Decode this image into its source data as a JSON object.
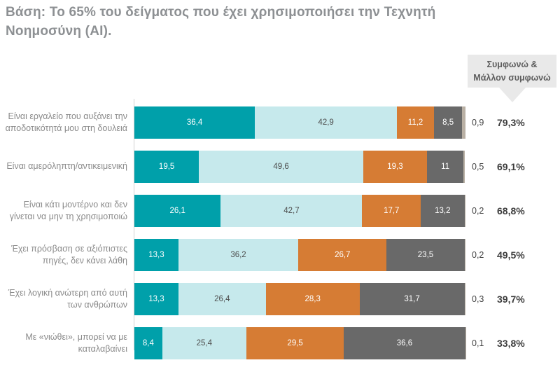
{
  "title": "Βάση: Το 65% του δείγματος που έχει χρησιμοποιήσει την Τεχνητή Νοημοσύνη (AI).",
  "badge": {
    "line1": "Συμφωνώ &",
    "line2": "Μάλλον συμφωνώ"
  },
  "chart_data": {
    "type": "bar",
    "stacked": true,
    "orientation": "horizontal",
    "unit": "%",
    "decimal_separator": ",",
    "xlim": [
      0,
      100
    ],
    "grid": false,
    "categories": [
      "Είναι εργαλείο που αυξάνει την αποδοτικότητά μου στη δουλειά",
      "Είναι αμερόληπτη/αντικειμενική",
      "Είναι κάτι μοντέρνο και δεν γίνεται να μην τη χρησιμοποιώ",
      "Έχει πρόσβαση σε αξιόπιστες πηγές, δεν κάνει λάθη",
      "Έχει λογική ανώτερη από αυτή των ανθρώπων",
      "Με «νιώθει», μπορεί να με καταλαβαίνει"
    ],
    "series": [
      {
        "name": "teal-segment",
        "color": "#00a0aa",
        "text_color": "#ffffff",
        "values": [
          36.4,
          19.5,
          26.1,
          13.3,
          13.3,
          8.4
        ]
      },
      {
        "name": "light-cyan-segment",
        "color": "#c6e9ec",
        "text_color": "#4d4d4d",
        "values": [
          42.9,
          49.6,
          42.7,
          36.2,
          26.4,
          25.4
        ]
      },
      {
        "name": "orange-segment",
        "color": "#d67c34",
        "text_color": "#ffffff",
        "values": [
          11.2,
          19.3,
          17.7,
          26.7,
          28.3,
          29.5
        ]
      },
      {
        "name": "dark-gray-segment",
        "color": "#696969",
        "text_color": "#ffffff",
        "values": [
          8.5,
          11,
          13.2,
          23.5,
          31.7,
          36.6
        ]
      },
      {
        "name": "beige-sliver-segment",
        "color": "#b9b0a4",
        "text_color": "",
        "values": [
          0.9,
          0.5,
          0.2,
          0.2,
          0.3,
          0.1
        ]
      }
    ],
    "outside_values": [
      0.9,
      0.5,
      0.2,
      0.2,
      0.3,
      0.1
    ],
    "totals": [
      79.3,
      69.1,
      68.8,
      49.5,
      39.7,
      33.8
    ],
    "totals_header": "Συμφωνώ & Μάλλον συμφωνώ",
    "min_value_for_inner_label": 5
  }
}
